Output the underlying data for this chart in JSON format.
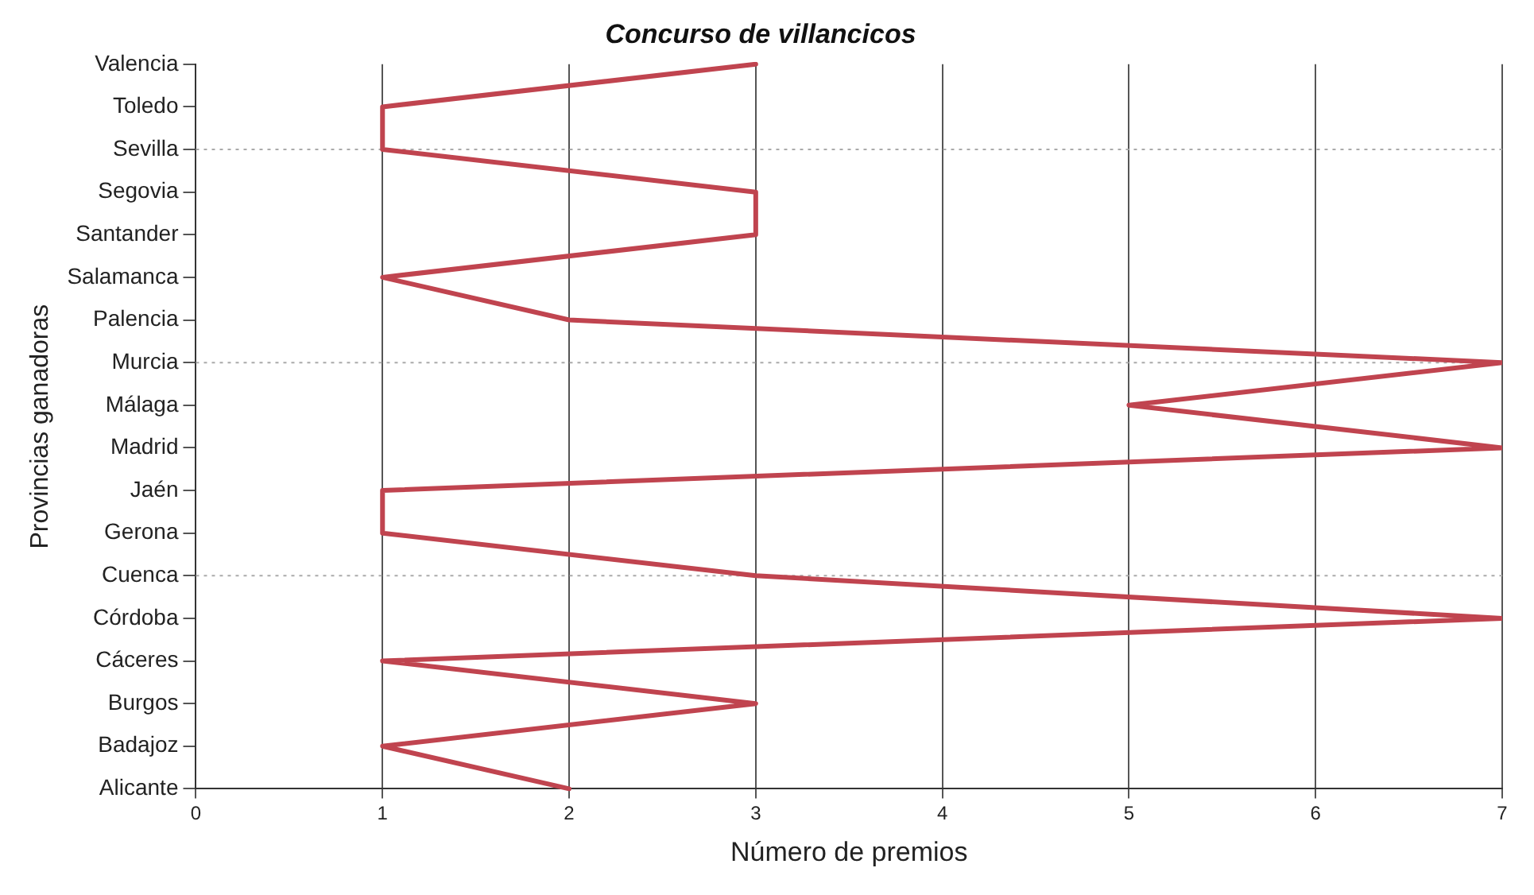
{
  "chart_data": {
    "type": "line",
    "orientation": "horizontal",
    "title": "Concurso de villancicos",
    "xlabel": "Número de premios",
    "ylabel": "Provincias ganadoras",
    "categories": [
      "Valencia",
      "Toledo",
      "Sevilla",
      "Segovia",
      "Santander",
      "Salamanca",
      "Palencia",
      "Murcia",
      "Málaga",
      "Madrid",
      "Jaén",
      "Gerona",
      "Cuenca",
      "Córdoba",
      "Cáceres",
      "Burgos",
      "Badajoz",
      "Alicante"
    ],
    "series": [
      {
        "color": "#c0444f",
        "values": [
          3,
          1,
          1,
          3,
          3,
          1,
          2,
          7,
          5,
          7,
          1,
          1,
          3,
          7,
          1,
          3,
          1,
          2
        ]
      }
    ],
    "xlim": [
      0,
      7
    ],
    "xticks": [
      0,
      1,
      2,
      3,
      4,
      5,
      6,
      7
    ],
    "grid": "x",
    "legend": false,
    "marker": "none",
    "line_style": "solid",
    "ref_lines": [
      {
        "axis": "y",
        "value": "Sevilla",
        "color": "#aaaaaa",
        "line_style": "dotted"
      },
      {
        "axis": "y",
        "value": "Murcia",
        "color": "#aaaaaa",
        "line_style": "dotted"
      },
      {
        "axis": "y",
        "value": "Cuenca",
        "color": "#aaaaaa",
        "line_style": "dotted"
      }
    ]
  }
}
